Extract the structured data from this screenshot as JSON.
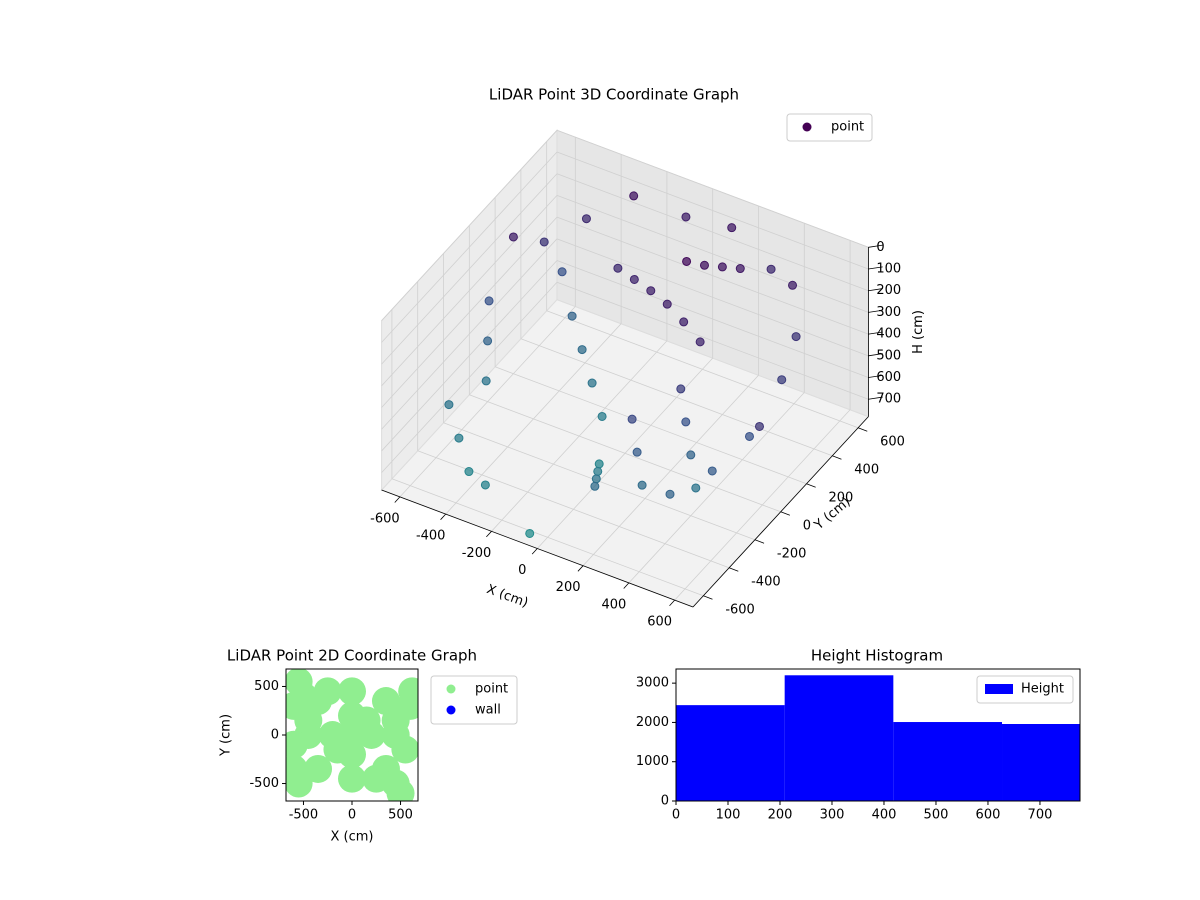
{
  "chart_data": [
    {
      "type": "scatter3d",
      "title": "LiDAR Point 3D Coordinate Graph",
      "xlabel": "X (cm)",
      "ylabel": "Y (cm)",
      "zlabel": "H (cm)",
      "xlim": [
        -680,
        680
      ],
      "ylim": [
        -680,
        680
      ],
      "zlim": [
        0,
        780
      ],
      "z_inverted": true,
      "xticks": [
        -600,
        -400,
        -200,
        0,
        200,
        400,
        600
      ],
      "yticks": [
        -600,
        -400,
        -200,
        0,
        200,
        400,
        600
      ],
      "zticks": [
        0,
        100,
        200,
        300,
        400,
        500,
        600,
        700
      ],
      "colormap": "viridis",
      "grid": true,
      "legend": "upper right",
      "series": [
        {
          "name": "point",
          "color": "#440154",
          "x": [
            -600,
            -550,
            -450,
            -300,
            -100,
            100,
            300,
            450,
            550,
            600,
            600,
            550,
            450,
            -500,
            -400,
            -300,
            -200,
            -100,
            0,
            50,
            100,
            150,
            -200,
            -100,
            0,
            100,
            200,
            300,
            100,
            150,
            200,
            250,
            -600,
            -500,
            -400,
            -300,
            300,
            350,
            400,
            450,
            200,
            250,
            300,
            -650,
            -600,
            -550,
            700,
            -50
          ],
          "y": [
            200,
            350,
            500,
            600,
            650,
            650,
            600,
            500,
            350,
            150,
            -100,
            -300,
            -450,
            400,
            300,
            200,
            100,
            0,
            -200,
            -300,
            -400,
            -500,
            300,
            250,
            200,
            150,
            100,
            50,
            300,
            350,
            400,
            450,
            -300,
            -400,
            -500,
            -550,
            -100,
            -150,
            -200,
            -250,
            -300,
            -350,
            -400,
            100,
            0,
            -100,
            -200,
            -650
          ],
          "values": [
            150,
            250,
            200,
            100,
            150,
            120,
            200,
            150,
            250,
            300,
            400,
            450,
            500,
            400,
            500,
            550,
            600,
            650,
            700,
            650,
            600,
            550,
            200,
            180,
            160,
            150,
            160,
            180,
            50,
            80,
            100,
            120,
            600,
            650,
            700,
            690,
            300,
            400,
            500,
            600,
            350,
            450,
            550,
            400,
            500,
            600,
            250,
            750
          ]
        }
      ]
    },
    {
      "type": "scatter",
      "title": "LiDAR Point 2D Coordinate Graph",
      "xlabel": "X (cm)",
      "ylabel": "Y (cm)",
      "xlim": [
        -680,
        680
      ],
      "ylim": [
        -680,
        680
      ],
      "xticks": [
        -500,
        0,
        500
      ],
      "yticks": [
        -500,
        0,
        500
      ],
      "legend": "outside upper right",
      "series": [
        {
          "name": "point",
          "color": "#90ee90",
          "x": [
            0,
            200,
            -200,
            0,
            0,
            350,
            -350,
            350,
            -350,
            450,
            -450,
            0,
            0,
            250,
            -250,
            -500,
            -550,
            -600,
            600,
            620,
            500,
            -550,
            -600,
            -600,
            550,
            450,
            -150,
            150,
            -450,
            450
          ],
          "values": [
            0,
            0,
            0,
            200,
            -200,
            350,
            350,
            -350,
            -350,
            0,
            0,
            450,
            -450,
            -450,
            450,
            400,
            550,
            300,
            300,
            450,
            -600,
            -500,
            -100,
            -350,
            -150,
            -500,
            -150,
            150,
            150,
            150
          ]
        },
        {
          "name": "wall",
          "color": "#0000ff",
          "x": [],
          "values": []
        }
      ]
    },
    {
      "type": "histogram",
      "title": "Height Histogram",
      "bins": [
        0,
        209,
        418,
        627,
        836
      ],
      "xlim": [
        0,
        777
      ],
      "ylim": [
        0,
        3360
      ],
      "xticks": [
        0,
        100,
        200,
        300,
        400,
        500,
        600,
        700
      ],
      "yticks": [
        0,
        1000,
        2000,
        3000
      ],
      "legend": "upper right",
      "series": [
        {
          "name": "Height",
          "color": "#0000ff",
          "values": [
            2440,
            3200,
            2010,
            1960
          ]
        }
      ]
    }
  ]
}
